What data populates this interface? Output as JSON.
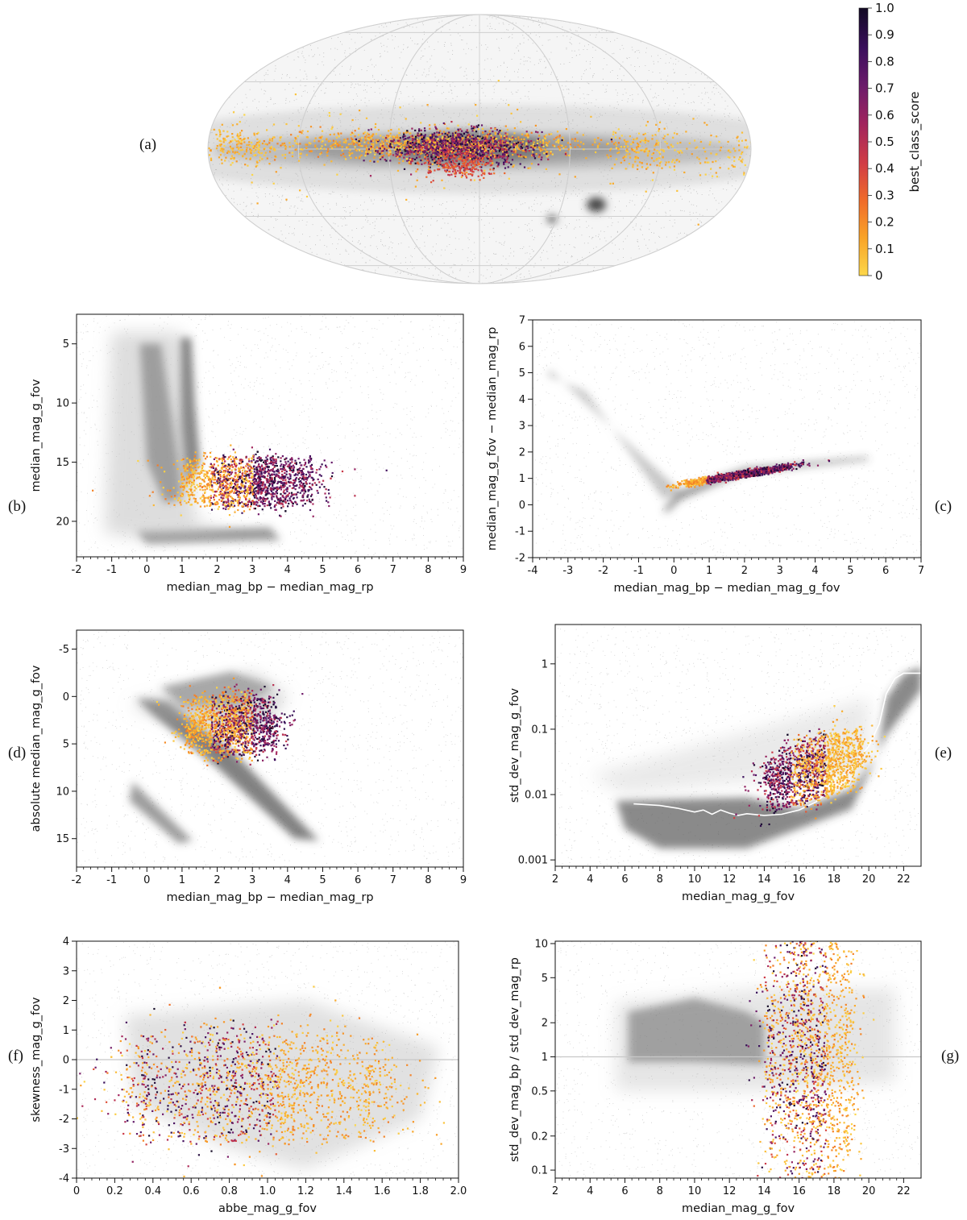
{
  "colors": {
    "background_density": "#4d4d4d",
    "reference_line_white": "#ffffff",
    "reference_line_grey": "#c8c8c8",
    "colormap": [
      "#fcd74a",
      "#f9a428",
      "#f06b2a",
      "#d13d45",
      "#a0245e",
      "#6b1b6b",
      "#3a0f5c",
      "#120a23"
    ]
  },
  "chart_data": [
    {
      "id": "a",
      "panel_label": "(a)",
      "type": "scatter",
      "projection": "Aitoff/Hammer all-sky (galactic)",
      "colorbar": {
        "label": "best_class_score",
        "range": [
          0,
          1
        ],
        "ticks": [
          "0",
          "0.1",
          "0.2",
          "0.3",
          "0.4",
          "0.5",
          "0.6",
          "0.7",
          "0.8",
          "0.9",
          "1.0"
        ]
      },
      "features": [
        "Galactic plane concentration",
        "Galactic bulge",
        "Large Magellanic Cloud",
        "Small Magellanic Cloud"
      ]
    },
    {
      "id": "b",
      "panel_label": "(b)",
      "type": "scatter",
      "xlabel": "median_mag_bp − median_mag_rp",
      "ylabel": "median_mag_g_fov",
      "xlim": [
        -2,
        9
      ],
      "ylim": [
        23,
        2.5
      ],
      "xticks": [
        -2,
        -1,
        0,
        1,
        2,
        3,
        4,
        5,
        6,
        7,
        8,
        9
      ],
      "yticks": [
        5,
        10,
        15,
        20
      ],
      "highlight_cluster": {
        "x_range": [
          0.8,
          4.9
        ],
        "y_range": [
          13.8,
          19.3
        ],
        "center": [
          2.5,
          16.3
        ]
      }
    },
    {
      "id": "c",
      "panel_label": "(c)",
      "type": "scatter",
      "xlabel": "median_mag_bp − median_mag_g_fov",
      "ylabel": "median_mag_g_fov − median_mag_rp",
      "xlim": [
        -4,
        7
      ],
      "ylim": [
        -2,
        7
      ],
      "xticks": [
        -4,
        -3,
        -2,
        -1,
        0,
        1,
        2,
        3,
        4,
        5,
        6,
        7
      ],
      "yticks": [
        -2,
        -1,
        0,
        1,
        2,
        3,
        4,
        5,
        6,
        7
      ],
      "highlight_cluster": {
        "x_range": [
          0.2,
          3.4
        ],
        "y_range": [
          0.7,
          1.6
        ]
      }
    },
    {
      "id": "d",
      "panel_label": "(d)",
      "type": "scatter",
      "xlabel": "median_mag_bp − median_mag_rp",
      "ylabel": "absolute median_mag_g_fov",
      "xlim": [
        -2,
        9
      ],
      "ylim": [
        18,
        -7
      ],
      "xticks": [
        -2,
        -1,
        0,
        1,
        2,
        3,
        4,
        5,
        6,
        7,
        8,
        9
      ],
      "yticks": [
        -5,
        0,
        5,
        10,
        15
      ],
      "highlight_cluster": {
        "x_range": [
          1.0,
          3.8
        ],
        "y_range": [
          -1,
          7
        ],
        "center": [
          2.0,
          3.0
        ]
      }
    },
    {
      "id": "e",
      "panel_label": "(e)",
      "type": "scatter",
      "xlabel": "median_mag_g_fov",
      "ylabel": "std_dev_mag_g_fov",
      "yscale": "log",
      "xlim": [
        2,
        23
      ],
      "ylim": [
        0.0008,
        4
      ],
      "xticks": [
        2,
        4,
        6,
        8,
        10,
        12,
        14,
        16,
        18,
        20,
        22
      ],
      "yticks": [
        0.001,
        0.01,
        0.1,
        1
      ],
      "ytick_labels": [
        "0.001",
        "0.01",
        "0.1",
        "1"
      ],
      "reference_line": {
        "color": "white",
        "x": [
          6.5,
          8,
          9,
          10,
          10.5,
          11,
          11.5,
          12,
          12.5,
          13,
          14,
          15,
          16,
          17,
          18,
          19,
          20,
          20.6,
          21,
          21.5,
          22,
          23
        ],
        "y": [
          0.0072,
          0.0068,
          0.0062,
          0.0054,
          0.0058,
          0.005,
          0.0058,
          0.0052,
          0.0048,
          0.0051,
          0.0048,
          0.005,
          0.0058,
          0.0078,
          0.013,
          0.025,
          0.055,
          0.12,
          0.35,
          0.6,
          0.72,
          0.72
        ]
      },
      "highlight_cluster": {
        "x_range": [
          13.8,
          19.8
        ],
        "y_range": [
          0.009,
          0.065
        ]
      }
    },
    {
      "id": "f",
      "panel_label": "(f)",
      "type": "scatter",
      "xlabel": "abbe_mag_g_fov",
      "ylabel": "skewness_mag_g_fov",
      "xlim": [
        0,
        2
      ],
      "ylim": [
        -4,
        4
      ],
      "xticks": [
        0,
        0.2,
        0.4,
        0.6,
        0.8,
        1.0,
        1.2,
        1.4,
        1.6,
        1.8,
        2.0
      ],
      "xtick_labels": [
        "0",
        "0.2",
        "0.4",
        "0.6",
        "0.8",
        "1.0",
        "1.2",
        "1.4",
        "1.6",
        "1.8",
        "2.0"
      ],
      "yticks": [
        -4,
        -3,
        -2,
        -1,
        0,
        1,
        2,
        3,
        4
      ],
      "reference_line": {
        "color": "grey",
        "y": 0
      },
      "highlight_cluster": {
        "x_range": [
          0.18,
          1.7
        ],
        "y_range": [
          -2.9,
          1.9
        ]
      }
    },
    {
      "id": "g",
      "panel_label": "(g)",
      "type": "scatter",
      "xlabel": "median_mag_g_fov",
      "ylabel": "std_dev_mag_bp / std_dev_mag_rp",
      "yscale": "log",
      "xlim": [
        2,
        23
      ],
      "ylim": [
        0.085,
        10.5
      ],
      "xticks": [
        2,
        4,
        6,
        8,
        10,
        12,
        14,
        16,
        18,
        20,
        22
      ],
      "yticks": [
        0.1,
        0.2,
        0.5,
        1,
        2,
        5,
        10
      ],
      "ytick_labels": [
        "0.1",
        "0.2",
        "0.5",
        "1",
        "2",
        "5",
        "10"
      ],
      "reference_line": {
        "color": "grey",
        "y": 1
      },
      "highlight_cluster": {
        "x_range": [
          13.8,
          19.3
        ],
        "y_range": [
          0.1,
          10.5
        ]
      }
    }
  ]
}
